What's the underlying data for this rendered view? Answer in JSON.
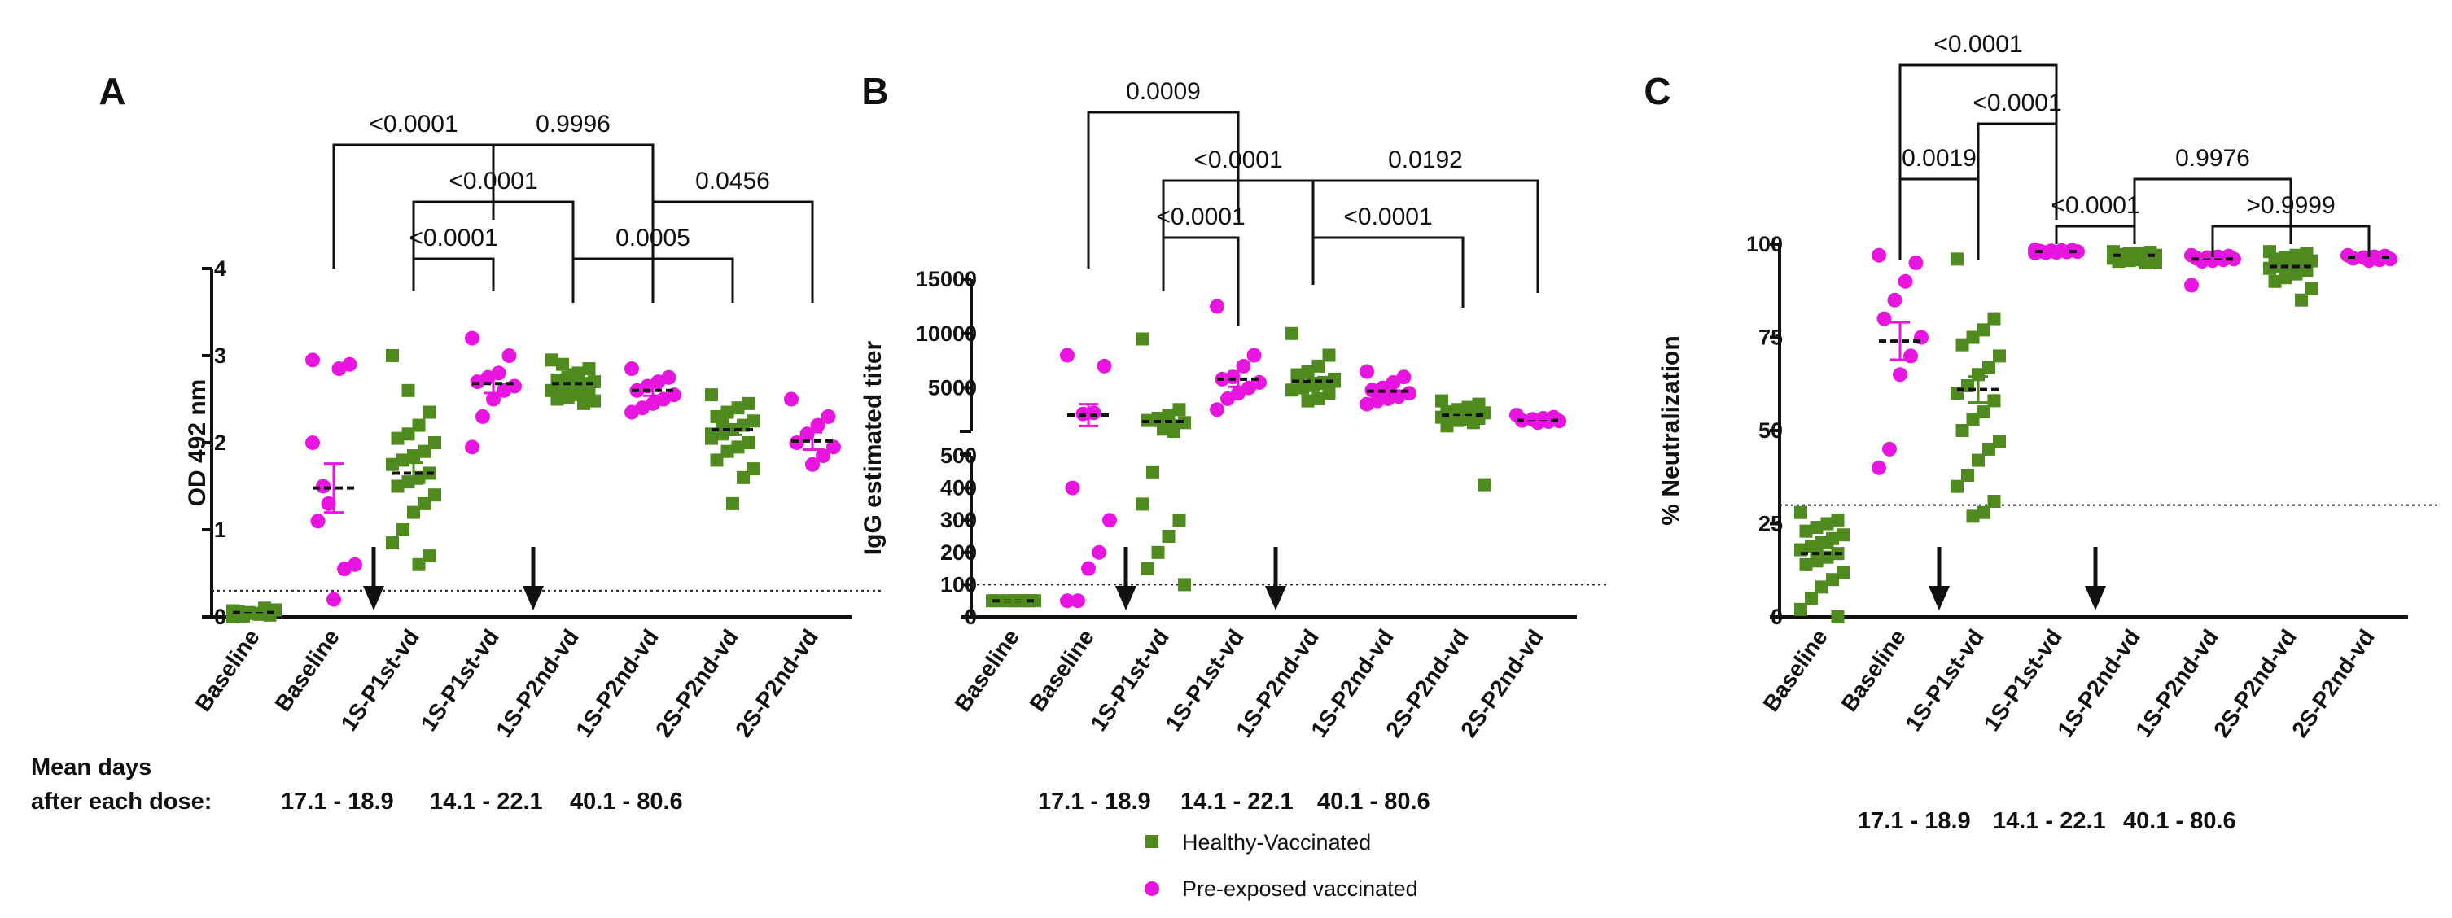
{
  "figure": {
    "days_label_line1": "Mean days",
    "days_label_line2": "after each dose:",
    "day_ranges": [
      "17.1 - 18.9",
      "14.1 - 22.1",
      "40.1 -  80.6"
    ],
    "legend": [
      {
        "label": "Healthy-Vaccinated",
        "color": "#4e8a1e",
        "marker": "square"
      },
      {
        "label": "Pre-exposed vaccinated",
        "color": "#e815e0",
        "marker": "circle"
      }
    ]
  },
  "chart_data": [
    {
      "panel": "A",
      "type": "scatter",
      "title": "A",
      "ylabel": "OD 492 nm",
      "ylim": [
        0,
        4
      ],
      "yticks": [
        "0",
        "1",
        "2",
        "3",
        "4"
      ],
      "threshold": 0.3,
      "categories": [
        "Baseline",
        "Baseline",
        "1S-P1st-vd",
        "1S-P1st-vd",
        "1S-P2nd-vd",
        "1S-P2nd-vd",
        "2S-P2nd-vd",
        "2S-P2nd-vd"
      ],
      "group_type": [
        "healthy",
        "preexposed",
        "healthy",
        "preexposed",
        "healthy",
        "preexposed",
        "healthy",
        "preexposed"
      ],
      "means": [
        0.05,
        1.48,
        1.65,
        2.68,
        2.68,
        2.6,
        2.15,
        2.02
      ],
      "sem": [
        0.02,
        0.28,
        0.12,
        0.11,
        0.04,
        0.06,
        0.06,
        0.1
      ],
      "points": [
        [
          0.0,
          0.02,
          0.03,
          0.05,
          0.06,
          0.08,
          0.1,
          0.04,
          0.01,
          0.07
        ],
        [
          2.95,
          2.9,
          2.85,
          1.3,
          1.1,
          0.6,
          0.55,
          0.2,
          1.5,
          2.0
        ],
        [
          3.0,
          2.35,
          2.2,
          2.1,
          2.05,
          2.0,
          1.9,
          1.85,
          1.8,
          1.75,
          1.65,
          1.6,
          1.55,
          1.5,
          1.4,
          1.3,
          1.2,
          1.0,
          0.85,
          0.7,
          0.6,
          2.6
        ],
        [
          3.2,
          3.0,
          2.8,
          2.75,
          2.7,
          2.65,
          2.6,
          2.5,
          2.3,
          1.95
        ],
        [
          2.95,
          2.85,
          2.8,
          2.75,
          2.72,
          2.7,
          2.68,
          2.65,
          2.62,
          2.6,
          2.58,
          2.55,
          2.52,
          2.5,
          2.48,
          2.45,
          2.78,
          2.9
        ],
        [
          2.85,
          2.75,
          2.7,
          2.65,
          2.6,
          2.55,
          2.5,
          2.45,
          2.4,
          2.35
        ],
        [
          2.55,
          2.45,
          2.4,
          2.35,
          2.3,
          2.25,
          2.2,
          2.15,
          2.1,
          2.05,
          2.0,
          1.95,
          1.9,
          1.8,
          1.7,
          1.6,
          1.3,
          2.2,
          2.1,
          2.0
        ],
        [
          2.5,
          2.3,
          2.2,
          2.1,
          2.0,
          1.95,
          1.85,
          1.75
        ]
      ],
      "arrows_after": [
        1,
        3
      ],
      "brackets": [
        {
          "from": 1,
          "to": 3,
          "label": "<0.0001"
        },
        {
          "from": 3,
          "to": 5,
          "label": "0.9996"
        },
        {
          "from": 2,
          "to": 4,
          "label": "<0.0001"
        },
        {
          "from": 5,
          "to": 7,
          "label": "0.0456"
        },
        {
          "from": 2,
          "to": 3,
          "label": "<0.0001"
        },
        {
          "from": 4,
          "to": 6,
          "label": "0.0005"
        }
      ]
    },
    {
      "panel": "B",
      "type": "scatter",
      "title": "B",
      "ylabel": "IgG estimated titer",
      "broken_axis": true,
      "lower_range": [
        0,
        500
      ],
      "upper_range": [
        1000,
        15000
      ],
      "yticks_lower": [
        "0",
        "100",
        "200",
        "300",
        "400",
        "500"
      ],
      "yticks_upper": [
        "5000",
        "10000",
        "15000"
      ],
      "threshold": 100,
      "categories": [
        "Baseline",
        "Baseline",
        "1S-P1st-vd",
        "1S-P1st-vd",
        "1S-P2nd-vd",
        "1S-P2nd-vd",
        "2S-P2nd-vd",
        "2S-P2nd-vd"
      ],
      "group_type": [
        "healthy",
        "preexposed",
        "healthy",
        "preexposed",
        "healthy",
        "preexposed",
        "healthy",
        "preexposed"
      ],
      "means": [
        50,
        2500,
        1900,
        5800,
        5600,
        4700,
        2500,
        2000
      ],
      "sem": [
        0,
        1000,
        400,
        700,
        300,
        400,
        200,
        150
      ],
      "points": [
        [
          50,
          50,
          50,
          50,
          50,
          50,
          50,
          50
        ],
        [
          8000,
          7000,
          2700,
          2600,
          400,
          300,
          200,
          150,
          50,
          50
        ],
        [
          9500,
          3000,
          2500,
          2200,
          2000,
          1800,
          1500,
          1200,
          450,
          350,
          300,
          250,
          200,
          150,
          100,
          1000
        ],
        [
          12500,
          8000,
          7000,
          6000,
          5800,
          5500,
          5000,
          4500,
          4000,
          3000
        ],
        [
          10000,
          8000,
          7000,
          6500,
          6000,
          5800,
          5500,
          5200,
          5000,
          4800,
          4500,
          4000,
          3800,
          6200,
          5600,
          5400
        ],
        [
          6500,
          6000,
          5500,
          5000,
          4800,
          4500,
          4200,
          4000,
          3800,
          3500
        ],
        [
          3800,
          3500,
          3200,
          3000,
          2800,
          2700,
          2600,
          2500,
          2400,
          2300,
          2200,
          2100,
          2000,
          1500,
          410,
          1800
        ],
        [
          2500,
          2300,
          2200,
          2100,
          2000,
          1950,
          1900,
          1800
        ]
      ],
      "arrows_after": [
        1,
        3
      ],
      "brackets": [
        {
          "from": 1,
          "to": 3,
          "label": "0.0009"
        },
        {
          "from": 2,
          "to": 4,
          "label": "<0.0001"
        },
        {
          "from": 4,
          "to": 7,
          "label": "0.0192"
        },
        {
          "from": 2,
          "to": 3,
          "label": "<0.0001"
        },
        {
          "from": 4,
          "to": 6,
          "label": "<0.0001"
        }
      ]
    },
    {
      "panel": "C",
      "type": "scatter",
      "title": "C",
      "ylabel": "% Neutralization",
      "ylim": [
        0,
        100
      ],
      "yticks": [
        "0",
        "25",
        "50",
        "75",
        "100"
      ],
      "threshold": 30,
      "categories": [
        "Baseline",
        "Baseline",
        "1S-P1st-vd",
        "1S-P1st-vd",
        "1S-P2nd-vd",
        "1S-P2nd-vd",
        "2S-P2nd-vd",
        "2S-P2nd-vd"
      ],
      "group_type": [
        "healthy",
        "preexposed",
        "healthy",
        "preexposed",
        "healthy",
        "preexposed",
        "healthy",
        "preexposed"
      ],
      "means": [
        17,
        74,
        61,
        98,
        97,
        96,
        94,
        96.5
      ],
      "sem": [
        1.5,
        5,
        3.5,
        0.2,
        0.2,
        0.5,
        0.8,
        0.3
      ],
      "points": [
        [
          28,
          26,
          25,
          24,
          23,
          22,
          21,
          20,
          19,
          18,
          17,
          16,
          15,
          14,
          12,
          10,
          8,
          5,
          2,
          0,
          20,
          18
        ],
        [
          97,
          95,
          90,
          85,
          80,
          75,
          70,
          65,
          45,
          40
        ],
        [
          96,
          80,
          77,
          75,
          73,
          70,
          67,
          65,
          62,
          60,
          58,
          55,
          53,
          50,
          47,
          45,
          42,
          38,
          35,
          31,
          28,
          27
        ],
        [
          98.5,
          98.4,
          98.3,
          98.2,
          98.1,
          98,
          97.9,
          97.8,
          97.7,
          97.6
        ],
        [
          98,
          97.8,
          97.6,
          97.4,
          97.2,
          97,
          96.8,
          96.6,
          96.4,
          96.2,
          96,
          95.8,
          95.6,
          95.4,
          95.2,
          95
        ],
        [
          97,
          96.8,
          96.6,
          96.4,
          96.2,
          96,
          95.8,
          95.6,
          95.4,
          89
        ],
        [
          98,
          97.5,
          97,
          96.5,
          96,
          95.5,
          95,
          94.5,
          94,
          93.5,
          93,
          92,
          91,
          90,
          88,
          85
        ],
        [
          97,
          96.8,
          96.6,
          96.4,
          96.2,
          96,
          95.8,
          95.6
        ]
      ],
      "arrows_after": [
        1,
        3
      ],
      "brackets": [
        {
          "from": 1,
          "to": 3,
          "label": "<0.0001"
        },
        {
          "from": 2,
          "to": 3,
          "label": "<0.0001"
        },
        {
          "from": 4,
          "to": 6,
          "label": "0.9976"
        },
        {
          "from": 1,
          "to": 2,
          "label": "0.0019"
        },
        {
          "from": 3,
          "to": 4,
          "label": "<0.0001"
        },
        {
          "from": 5,
          "to": 7,
          "label": ">0.9999"
        }
      ]
    }
  ]
}
